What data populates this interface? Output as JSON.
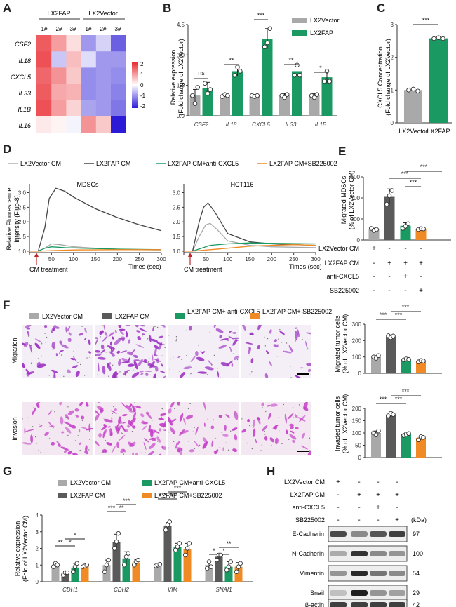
{
  "panel_labels": {
    "A": "A",
    "B": "B",
    "C": "C",
    "D": "D",
    "E": "E",
    "F": "F",
    "G": "G",
    "H": "H"
  },
  "colors": {
    "gray": "#a9a9a9",
    "dark": "#5a5a5a",
    "green": "#1a9a62",
    "orange": "#f08a24"
  },
  "panel_a": {
    "group1": "LX2FAP",
    "group2": "LX2Vector",
    "cols": [
      "1#",
      "2#",
      "3#",
      "1#",
      "2#",
      "3#"
    ],
    "rows": [
      "CSF2",
      "IL18",
      "CXCL5",
      "IL33",
      "IL1B",
      "IL16"
    ],
    "colorbar": [
      "2",
      "1",
      "0",
      "-1",
      "-2"
    ]
  },
  "panel_b": {
    "ylabel1": "Relative expression",
    "ylabel2": "(Fold change of LX2Vector)",
    "legend": [
      "LX2Vector",
      "LX2FAP"
    ],
    "sig": [
      "ns",
      "**",
      "***",
      "**",
      "*"
    ]
  },
  "panel_c": {
    "ylabel1": "CXCL5 Concentration",
    "ylabel2": "(Fold change of LX2Vector)",
    "xlabels": [
      "LX2Vector",
      "LX2FAP"
    ],
    "sig": "***"
  },
  "panel_d": {
    "legend": [
      "LX2Vector CM",
      "LX2FAP CM",
      "LX2FAP CM+anti-CXCL5",
      "LX2FAP CM+SB225002"
    ],
    "ylabel1": "Relative Fluorescence",
    "ylabel2": "Intensity (Fluo-8)",
    "title1": "MDSCs",
    "title2": "HCT116",
    "treatment": "CM treatment",
    "xlabel": "Times (sec)"
  },
  "panel_e": {
    "ylabel1": "Migrated MDSCs",
    "ylabel2": "(% of LX2Vector CM)",
    "rows": [
      "LX2Vector CM",
      "LX2FAP CM",
      "anti-CXCL5",
      "SB225002"
    ],
    "signs": [
      [
        "+",
        "-",
        "-",
        "-"
      ],
      [
        "-",
        "+",
        "+",
        "+"
      ],
      [
        "-",
        "-",
        "+",
        "-"
      ],
      [
        "-",
        "-",
        "-",
        "+"
      ]
    ],
    "sig": [
      "***",
      "***",
      "***"
    ]
  },
  "panel_f": {
    "legend": [
      "LX2Vector CM",
      "LX2FAP CM",
      "LX2FAP CM+ anti-CXCL5",
      "LX2FAP CM+ SB225002"
    ],
    "rows": [
      "Migration",
      "Invasion"
    ],
    "ylabel_mig1": "Migrated tumor cells",
    "ylabel_mig2": "(% of LX2Vector CM)",
    "ylabel_inv1": "Invaded tumor cells",
    "ylabel_inv2": "(% of LX2Vector CM)",
    "sig": [
      "***",
      "***",
      "***"
    ]
  },
  "panel_g": {
    "legend": [
      "LX2Vector CM",
      "LX2FAP CM",
      "LX2FAP CM+anti-CXCL5",
      "LX2FAP CM+SB225002"
    ],
    "ylabel1": "Relative expression",
    "ylabel2": "(Fold of LX2Vector CM)"
  },
  "panel_h": {
    "rows": [
      "LX2Vector CM",
      "LX2FAP CM",
      "anti-CXCL5",
      "SB225002"
    ],
    "signs": [
      [
        "+",
        "-",
        "-",
        "-"
      ],
      [
        "-",
        "+",
        "+",
        "+"
      ],
      [
        "-",
        "-",
        "+",
        "-"
      ],
      [
        "-",
        "-",
        "-",
        "+"
      ]
    ],
    "kda": "(kDa)",
    "proteins": [
      "E-Cadherin",
      "N-Cadherin",
      "Vimentin",
      "Snail",
      "β-actin"
    ],
    "weights": [
      "97",
      "100",
      "54",
      "29",
      "42"
    ]
  },
  "chart_data": [
    {
      "panel": "A",
      "type": "heatmap",
      "rows": [
        "CSF2",
        "IL18",
        "CXCL5",
        "IL33",
        "IL1B",
        "IL16"
      ],
      "cols": [
        "LX2FAP 1#",
        "LX2FAP 2#",
        "LX2FAP 3#",
        "LX2Vector 1#",
        "LX2Vector 2#",
        "LX2Vector 3#"
      ],
      "values": [
        [
          1.5,
          0.9,
          0.3,
          -0.9,
          -0.4,
          -1.4
        ],
        [
          1.6,
          -0.5,
          0.6,
          -0.3,
          -0.9,
          -0.9
        ],
        [
          1.4,
          1.0,
          0.5,
          -1.0,
          -0.9,
          -1.0
        ],
        [
          1.5,
          0.8,
          0.7,
          -1.0,
          -0.9,
          -1.1
        ],
        [
          1.6,
          0.9,
          0.4,
          -0.8,
          -0.9,
          -1.2
        ],
        [
          0.2,
          0.1,
          -0.1,
          1.0,
          0.5,
          -2.0
        ]
      ],
      "range": [
        -2,
        2
      ]
    },
    {
      "panel": "B",
      "type": "bar",
      "categories": [
        "CSF2",
        "IL18",
        "CXCL5",
        "IL33",
        "IL1B"
      ],
      "ylim": [
        0,
        4.5
      ],
      "yticks": [
        0,
        1.5,
        3.0,
        4.5
      ],
      "series": [
        {
          "name": "LX2Vector",
          "values": [
            1.0,
            1.0,
            1.0,
            1.0,
            1.0
          ],
          "err": [
            0.3,
            0.07,
            0.05,
            0.1,
            0.1
          ],
          "points": [
            [
              1.0,
              0.6,
              1.4
            ],
            [
              0.95,
              1.05,
              1.0
            ],
            [
              1.0,
              0.95,
              1.0
            ],
            [
              1.0,
              0.9,
              1.05
            ],
            [
              1.0,
              0.9,
              1.05
            ]
          ]
        },
        {
          "name": "LX2FAP",
          "values": [
            1.35,
            2.2,
            3.8,
            2.2,
            1.9
          ],
          "err": [
            0.3,
            0.25,
            0.5,
            0.3,
            0.3
          ],
          "points": [
            [
              1.6,
              1.1,
              1.3
            ],
            [
              2.0,
              2.4,
              2.2
            ],
            [
              3.4,
              3.6,
              4.3
            ],
            [
              2.0,
              2.5,
              2.0
            ],
            [
              1.7,
              2.2,
              1.7
            ]
          ]
        }
      ]
    },
    {
      "panel": "C",
      "type": "bar",
      "categories": [
        "LX2Vector",
        "LX2FAP"
      ],
      "values": [
        1.0,
        2.58
      ],
      "err": [
        0.03,
        0.03
      ],
      "ylim": [
        0,
        3
      ],
      "yticks": [
        0,
        1,
        2,
        3
      ],
      "points": [
        [
          1.0,
          1.03,
          0.97
        ],
        [
          2.57,
          2.6,
          2.57
        ]
      ]
    },
    {
      "panel": "D",
      "type": "line",
      "charts": [
        {
          "title": "MDSCs",
          "xlim": [
            0,
            300
          ],
          "ylim": [
            0.95,
            3.3
          ],
          "xticks": [
            0,
            50,
            100,
            150,
            200,
            250,
            300
          ],
          "yticks": [
            1.0,
            1.5,
            2.0,
            2.5,
            3.0
          ],
          "series": [
            {
              "name": "LX2Vector CM",
              "x": [
                0,
                20,
                35,
                50,
                70,
                100,
                150,
                200,
                250,
                300
              ],
              "y": [
                1.0,
                1.0,
                1.1,
                1.25,
                1.22,
                1.15,
                1.1,
                1.07,
                1.05,
                1.04
              ]
            },
            {
              "name": "LX2FAP CM",
              "x": [
                0,
                20,
                35,
                45,
                60,
                80,
                100,
                150,
                200,
                250,
                300
              ],
              "y": [
                1.0,
                1.0,
                1.8,
                2.8,
                3.15,
                3.05,
                2.85,
                2.45,
                2.15,
                1.9,
                1.7
              ]
            },
            {
              "name": "LX2FAP CM+anti-CXCL5",
              "x": [
                0,
                20,
                35,
                50,
                80,
                120,
                200,
                300
              ],
              "y": [
                1.0,
                1.0,
                1.1,
                1.15,
                1.12,
                1.1,
                1.07,
                1.05
              ]
            },
            {
              "name": "LX2FAP CM+SB225002",
              "x": [
                0,
                20,
                50,
                100,
                200,
                300
              ],
              "y": [
                1.0,
                1.0,
                1.02,
                1.04,
                1.05,
                1.05
              ]
            }
          ]
        },
        {
          "title": "HCT116",
          "xlim": [
            0,
            300
          ],
          "ylim": [
            0.95,
            3.3
          ],
          "xticks": [
            0,
            50,
            100,
            150,
            200,
            250,
            300
          ],
          "yticks": [
            1.0,
            1.5,
            2.0,
            2.5,
            3.0
          ],
          "series": [
            {
              "name": "LX2Vector CM",
              "x": [
                0,
                20,
                35,
                50,
                60,
                75,
                100,
                150,
                200,
                300
              ],
              "y": [
                1.0,
                1.0,
                1.5,
                1.9,
                1.95,
                1.75,
                1.35,
                1.2,
                1.15,
                1.12
              ]
            },
            {
              "name": "LX2FAP CM",
              "x": [
                0,
                20,
                35,
                45,
                55,
                70,
                100,
                150,
                200,
                300
              ],
              "y": [
                1.0,
                1.0,
                2.0,
                2.5,
                2.65,
                2.35,
                1.6,
                1.32,
                1.25,
                1.2
              ]
            },
            {
              "name": "LX2FAP CM+anti-CXCL5",
              "x": [
                0,
                20,
                40,
                60,
                100,
                150,
                200,
                300
              ],
              "y": [
                1.0,
                1.0,
                1.1,
                1.2,
                1.25,
                1.28,
                1.27,
                1.25
              ]
            },
            {
              "name": "LX2FAP CM+SB225002",
              "x": [
                0,
                20,
                60,
                100,
                150,
                200,
                250,
                300
              ],
              "y": [
                1.0,
                1.0,
                1.05,
                1.1,
                1.17,
                1.2,
                1.22,
                1.2
              ]
            }
          ]
        }
      ]
    },
    {
      "panel": "E",
      "type": "bar",
      "categories": [
        "LX2Vector CM",
        "LX2FAP CM",
        "LX2FAP CM+anti-CXCL5",
        "LX2FAP CM+SB225002"
      ],
      "values": [
        100,
        410,
        135,
        105
      ],
      "err": [
        12,
        75,
        28,
        8
      ],
      "ylim": [
        0,
        600
      ],
      "yticks": [
        0,
        200,
        400,
        600
      ],
      "points": [
        [
          110,
          90,
          100
        ],
        [
          340,
          420,
          470
        ],
        [
          110,
          130,
          155
        ],
        [
          100,
          108,
          105
        ]
      ]
    },
    {
      "panel": "F-migration",
      "type": "bar",
      "categories": [
        "LX2Vector CM",
        "LX2FAP CM",
        "LX2FAP CM+anti-CXCL5",
        "LX2FAP CM+SB225002"
      ],
      "values": [
        100,
        225,
        85,
        75
      ],
      "err": [
        8,
        8,
        5,
        5
      ],
      "ylim": [
        0,
        300
      ],
      "yticks": [
        0,
        100,
        200,
        300
      ],
      "points": [
        [
          100,
          92,
          108
        ],
        [
          230,
          218,
          228
        ],
        [
          82,
          88,
          85
        ],
        [
          70,
          78,
          75
        ]
      ]
    },
    {
      "panel": "F-invasion",
      "type": "bar",
      "categories": [
        "LX2Vector CM",
        "LX2FAP CM",
        "LX2FAP CM+anti-CXCL5",
        "LX2FAP CM+SB225002"
      ],
      "values": [
        100,
        175,
        95,
        80
      ],
      "err": [
        8,
        10,
        5,
        8
      ],
      "ylim": [
        0,
        200
      ],
      "yticks": [
        0,
        50,
        100,
        150,
        200
      ],
      "points": [
        [
          100,
          92,
          108
        ],
        [
          170,
          180,
          175
        ],
        [
          90,
          95,
          98
        ],
        [
          72,
          85,
          82
        ]
      ]
    },
    {
      "panel": "G",
      "type": "bar",
      "categories": [
        "CDH1",
        "CDH2",
        "VIM",
        "SNAI1"
      ],
      "ylim": [
        0,
        4
      ],
      "yticks": [
        0,
        1,
        2,
        3,
        4
      ],
      "series": [
        {
          "name": "LX2Vector CM",
          "values": [
            1.0,
            1.0,
            1.0,
            1.0
          ],
          "err": [
            0.1,
            0.3,
            0.05,
            0.2
          ],
          "points": [
            [
              0.9,
              1.1,
              1.0
            ],
            [
              0.6,
              1.0,
              1.3
            ],
            [
              0.95,
              1.0,
              1.05
            ],
            [
              0.8,
              1.2,
              0.9
            ]
          ]
        },
        {
          "name": "LX2FAP CM",
          "values": [
            0.5,
            2.4,
            3.35,
            1.5
          ],
          "err": [
            0.1,
            0.45,
            0.2,
            0.2
          ],
          "points": [
            [
              0.4,
              0.55,
              0.55
            ],
            [
              2.0,
              2.4,
              2.9
            ],
            [
              3.1,
              3.4,
              3.6
            ],
            [
              1.3,
              1.6,
              1.6
            ]
          ]
        },
        {
          "name": "LX2FAP CM+anti-CXCL5",
          "values": [
            0.85,
            1.4,
            2.1,
            0.9
          ],
          "err": [
            0.25,
            0.4,
            0.2,
            0.3
          ],
          "points": [
            [
              0.6,
              0.9,
              1.1
            ],
            [
              1.0,
              1.5,
              1.7
            ],
            [
              1.9,
              2.1,
              2.3
            ],
            [
              0.7,
              0.9,
              1.2
            ]
          ]
        },
        {
          "name": "LX2FAP CM+SB225002",
          "values": [
            0.95,
            1.15,
            1.95,
            0.9
          ],
          "err": [
            0.1,
            0.2,
            0.35,
            0.25
          ],
          "points": [
            [
              0.9,
              0.95,
              1.0
            ],
            [
              1.0,
              1.2,
              1.3
            ],
            [
              1.6,
              2.0,
              2.3
            ],
            [
              0.6,
              0.9,
              1.1
            ]
          ]
        }
      ]
    }
  ]
}
